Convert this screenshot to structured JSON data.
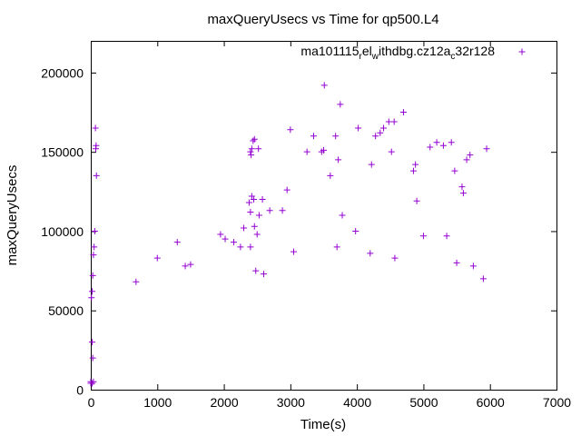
{
  "chart_data": {
    "type": "scatter",
    "title": "maxQueryUsecs vs Time for qp500.L4",
    "xlabel": "Time(s)",
    "ylabel": "maxQueryUsecs",
    "xlim": [
      0,
      7000
    ],
    "ylim": [
      0,
      220000
    ],
    "xticks": [
      0,
      1000,
      2000,
      3000,
      4000,
      5000,
      6000,
      7000
    ],
    "yticks": [
      0,
      50000,
      100000,
      150000,
      200000
    ],
    "grid": false,
    "legend_position": "top-right",
    "marker": "plus",
    "color": "#9400d3",
    "legend": {
      "parts": [
        {
          "t": "ma101115",
          "s": "n"
        },
        {
          "t": "r",
          "s": "b"
        },
        {
          "t": "el",
          "s": "n"
        },
        {
          "t": "w",
          "s": "b"
        },
        {
          "t": "ithdbg.cz12a",
          "s": "n"
        },
        {
          "t": "c",
          "s": "b"
        },
        {
          "t": "32r128",
          "s": "n"
        }
      ]
    },
    "series": [
      {
        "points": [
          [
            0,
            4000
          ],
          [
            0,
            5000
          ],
          [
            10,
            58000
          ],
          [
            20,
            62000
          ],
          [
            30,
            72000
          ],
          [
            40,
            85000
          ],
          [
            50,
            90000
          ],
          [
            60,
            100000
          ],
          [
            70,
            165000
          ],
          [
            75,
            152000
          ],
          [
            80,
            154000
          ],
          [
            85,
            135000
          ],
          [
            20,
            30000
          ],
          [
            30,
            20000
          ],
          [
            20,
            4000
          ],
          [
            40,
            5000
          ],
          [
            680,
            68000
          ],
          [
            1000,
            83000
          ],
          [
            1300,
            93000
          ],
          [
            1420,
            78000
          ],
          [
            1500,
            79000
          ],
          [
            1950,
            98000
          ],
          [
            2020,
            95000
          ],
          [
            2150,
            93000
          ],
          [
            2250,
            90000
          ],
          [
            2300,
            102000
          ],
          [
            2400,
            150000
          ],
          [
            2420,
            152000
          ],
          [
            2440,
            157000
          ],
          [
            2460,
            158000
          ],
          [
            2410,
            148000
          ],
          [
            2520,
            152000
          ],
          [
            2380,
            118000
          ],
          [
            2400,
            112000
          ],
          [
            2420,
            122000
          ],
          [
            2450,
            120000
          ],
          [
            2460,
            103000
          ],
          [
            2500,
            98000
          ],
          [
            2530,
            110000
          ],
          [
            2580,
            120000
          ],
          [
            2400,
            90000
          ],
          [
            2480,
            75000
          ],
          [
            2600,
            73000
          ],
          [
            2690,
            113000
          ],
          [
            2880,
            113000
          ],
          [
            2950,
            126000
          ],
          [
            3000,
            164000
          ],
          [
            3250,
            150000
          ],
          [
            3350,
            160000
          ],
          [
            3510,
            192000
          ],
          [
            3470,
            150000
          ],
          [
            3500,
            151000
          ],
          [
            3600,
            135000
          ],
          [
            3680,
            160000
          ],
          [
            3720,
            145000
          ],
          [
            3750,
            180000
          ],
          [
            3780,
            110000
          ],
          [
            3980,
            100000
          ],
          [
            4020,
            165000
          ],
          [
            4220,
            142000
          ],
          [
            4280,
            160000
          ],
          [
            4350,
            162000
          ],
          [
            4400,
            165000
          ],
          [
            4480,
            169000
          ],
          [
            4560,
            169000
          ],
          [
            4700,
            175000
          ],
          [
            4520,
            150000
          ],
          [
            4570,
            83000
          ],
          [
            4850,
            138000
          ],
          [
            4880,
            142000
          ],
          [
            4900,
            119000
          ],
          [
            5100,
            153000
          ],
          [
            5200,
            156000
          ],
          [
            5300,
            154000
          ],
          [
            5420,
            156000
          ],
          [
            5470,
            138000
          ],
          [
            5350,
            97000
          ],
          [
            5580,
            128000
          ],
          [
            5600,
            124000
          ],
          [
            5650,
            145000
          ],
          [
            5700,
            148000
          ],
          [
            5750,
            78000
          ],
          [
            5950,
            152000
          ],
          [
            3050,
            87000
          ],
          [
            3700,
            90000
          ],
          [
            4200,
            86000
          ],
          [
            5000,
            97000
          ],
          [
            5500,
            80000
          ],
          [
            5900,
            70000
          ]
        ]
      }
    ]
  }
}
